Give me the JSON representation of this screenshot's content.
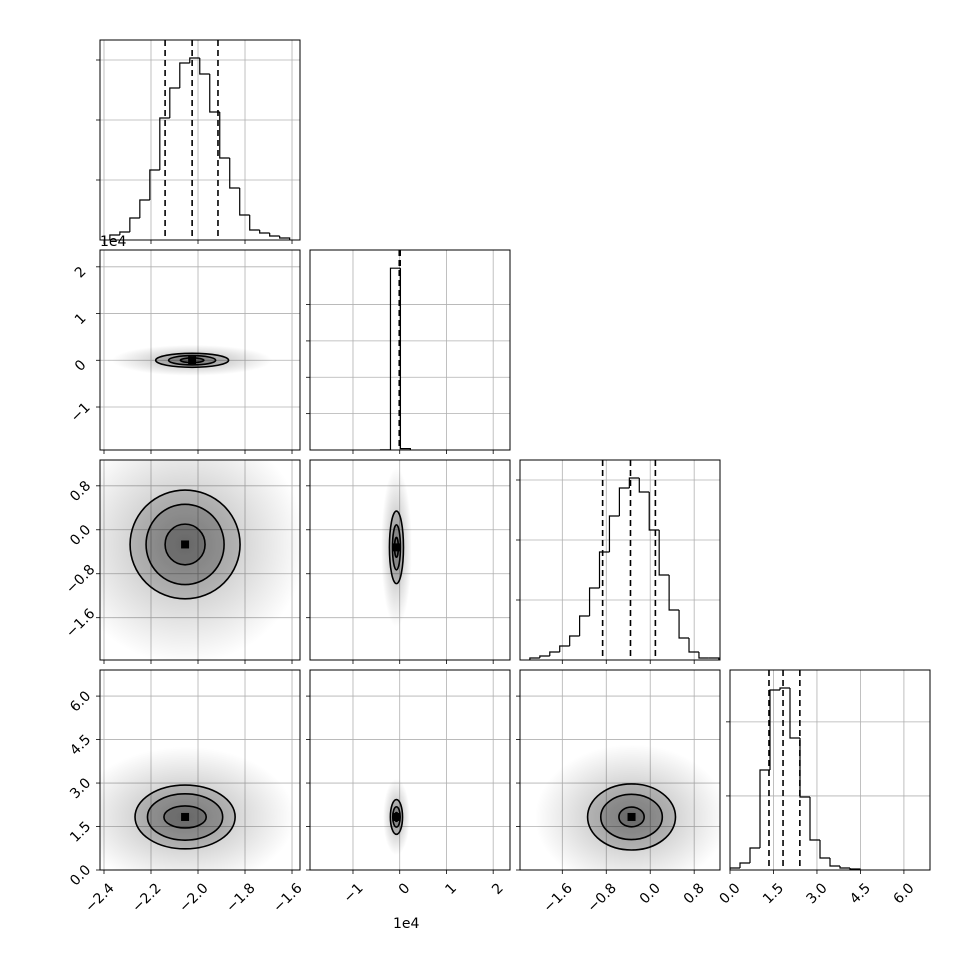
{
  "chart_data": {
    "type": "corner",
    "grid": true,
    "color": "#000000",
    "variables": [
      {
        "lim": [
          -2.417,
          -1.566
        ],
        "ticks": [
          {
            "value": -2.4,
            "label": "−2.4"
          },
          {
            "value": -2.2,
            "label": "−2.2"
          },
          {
            "value": -2.0,
            "label": "−2.0"
          },
          {
            "value": -1.8,
            "label": "−1.8"
          },
          {
            "value": -1.6,
            "label": "−1.6"
          }
        ]
      },
      {
        "lim": [
          -1.92,
          2.36
        ],
        "ticks": [
          {
            "value": -1,
            "label": "−1"
          },
          0,
          1,
          2
        ],
        "offset_label": "1e4"
      },
      {
        "lim": [
          -2.37,
          1.27
        ],
        "ticks": [
          {
            "value": -1.6,
            "label": "−1.6"
          },
          {
            "value": -0.8,
            "label": "−0.8"
          },
          {
            "value": 0.0,
            "label": "0.0"
          },
          0.8
        ]
      },
      {
        "lim": [
          0,
          6.9
        ],
        "ticks": [
          {
            "value": 0.0,
            "label": "0.0"
          },
          1.5,
          {
            "value": 3.0,
            "label": "3.0"
          },
          4.5,
          {
            "value": 6.0,
            "label": "6.0"
          }
        ]
      }
    ],
    "histograms": [
      {
        "bins": [
          -2.375,
          -2.3325,
          -2.29,
          -2.2475,
          -2.205,
          -2.1625,
          -2.12,
          -2.0775,
          -2.035,
          -1.9925,
          -1.95,
          -1.9075,
          -1.865,
          -1.8225,
          -1.78,
          -1.7375,
          -1.695,
          -1.6525,
          -1.61
        ],
        "counts": [
          50,
          80,
          220,
          400,
          700,
          1220,
          1520,
          1770,
          1820,
          1660,
          1280,
          820,
          520,
          250,
          100,
          70,
          40,
          20
        ],
        "ylim": [
          0,
          2000
        ],
        "yticks": [
          600,
          1200,
          1800
        ],
        "quantiles": [
          -2.14,
          -2.025,
          -1.915
        ]
      },
      {
        "bins": [
          -0.41,
          -0.198,
          0.015,
          0.228
        ],
        "counts": [
          20,
          20000,
          150
        ],
        "ylim": [
          0,
          22000
        ],
        "yticks": [
          4000,
          8000,
          12000,
          16000
        ],
        "quantiles": [
          -0.01,
          0.0,
          0.01
        ]
      },
      {
        "bins": [
          -2.19,
          -2.009,
          -1.828,
          -1.647,
          -1.466,
          -1.285,
          -1.104,
          -0.923,
          -0.742,
          -0.561,
          -0.38,
          -0.199,
          -0.018,
          0.163,
          0.344,
          0.525,
          0.706,
          0.887,
          1.068,
          1.249
        ],
        "counts": [
          20,
          40,
          80,
          140,
          240,
          440,
          720,
          1080,
          1440,
          1720,
          1820,
          1680,
          1300,
          850,
          500,
          220,
          80,
          20,
          20
        ],
        "ylim": [
          0,
          2000
        ],
        "yticks": [
          600,
          1200,
          1800
        ],
        "quantiles": [
          -0.866,
          -0.359,
          0.094
        ]
      },
      {
        "bins": [
          0,
          0.345,
          0.69,
          1.035,
          1.38,
          1.725,
          2.07,
          2.415,
          2.76,
          3.105,
          3.45,
          3.795,
          4.14,
          4.485
        ],
        "counts": [
          27,
          95,
          297,
          1350,
          2430,
          2457,
          1782,
          986,
          405,
          162,
          54,
          27,
          14
        ],
        "ylim": [
          0,
          2700
        ],
        "yticks": [
          1000,
          2000
        ],
        "quantiles": [
          1.345,
          1.83,
          2.41
        ]
      }
    ],
    "panels": [
      {
        "center": [
          -2.025,
          0.0
        ],
        "contours": [
          [
            0.155,
            0.15
          ],
          [
            0.1,
            0.1
          ],
          [
            0.05,
            0.05
          ]
        ]
      },
      {
        "center": [
          -2.055,
          -0.267
        ],
        "contours": [
          [
            0.234,
            0.99
          ],
          [
            0.166,
            0.73
          ],
          [
            0.085,
            0.37
          ]
        ]
      },
      {
        "center": [
          -0.07,
          -0.32
        ],
        "contours": [
          [
            0.15,
            0.66
          ],
          [
            0.085,
            0.41
          ],
          [
            0.04,
            0.18
          ]
        ]
      },
      {
        "center": [
          -2.055,
          1.83
        ],
        "contours": [
          [
            0.213,
            1.1
          ],
          [
            0.16,
            0.8
          ],
          [
            0.09,
            0.38
          ]
        ]
      },
      {
        "center": [
          -0.07,
          1.83
        ],
        "contours": [
          [
            0.13,
            0.6
          ],
          [
            0.08,
            0.35
          ],
          [
            0.04,
            0.15
          ]
        ]
      },
      {
        "center": [
          -0.34,
          1.83
        ],
        "contours": [
          [
            0.8,
            1.14
          ],
          [
            0.56,
            0.78
          ],
          [
            0.23,
            0.34
          ]
        ]
      }
    ]
  }
}
